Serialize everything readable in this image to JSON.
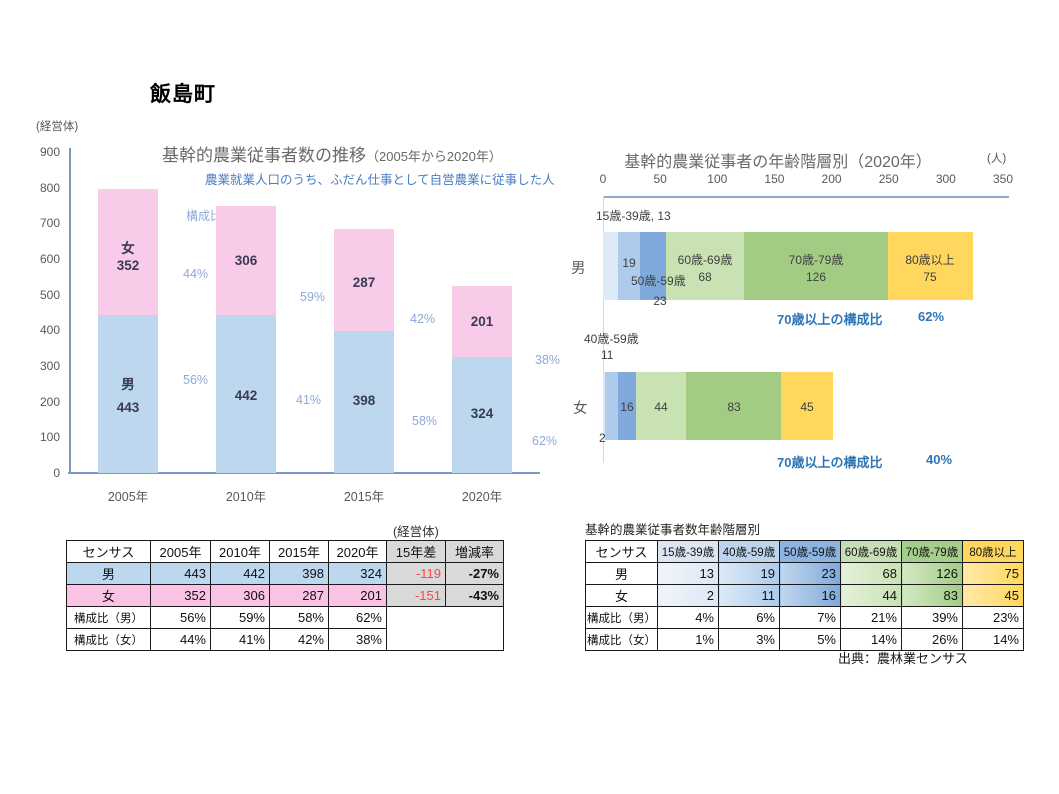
{
  "page": {
    "title": "飯島町",
    "source_note": "出典：農林業センサス"
  },
  "chart_data": [
    {
      "type": "bar",
      "stacked": true,
      "title": "基幹的農業従事者数の推移",
      "title_suffix": "（2005年から2020年）",
      "subtitle": "農業就業人口のうち、ふだん仕事として自営農業に従事した人",
      "unit_label": "(経営体)",
      "overlay_label": "構成比",
      "categories": [
        "2005年",
        "2010年",
        "2015年",
        "2020年"
      ],
      "series": [
        {
          "name": "男",
          "color": "#BDD7EE",
          "values": [
            443,
            442,
            398,
            324
          ]
        },
        {
          "name": "女",
          "color": "#F8CBE8",
          "values": [
            352,
            306,
            287,
            201
          ]
        }
      ],
      "share_labels": {
        "male": [
          "56%",
          "59%",
          "58%",
          "62%"
        ],
        "female": [
          "44%",
          "41%",
          "42%",
          "38%"
        ]
      },
      "ylim": [
        0,
        900
      ],
      "ytick_step": 100,
      "grid": false,
      "legend": "none"
    },
    {
      "type": "bar-horizontal",
      "stacked": true,
      "title": "基幹的農業従事者の年齢階層別（2020年）",
      "unit_label": "(人)",
      "categories": [
        "男",
        "女"
      ],
      "age_groups": [
        "15歳-39歳",
        "40歳-59歳",
        "50歳-59歳",
        "60歳-69歳",
        "70歳-79歳",
        "80歳以上"
      ],
      "age_colors": [
        "#DCE9F6",
        "#AECBEB",
        "#7FA9DB",
        "#C8E2B4",
        "#A2CC84",
        "#FFD75E"
      ],
      "series": [
        {
          "name": "男",
          "values": [
            13,
            19,
            23,
            68,
            126,
            75
          ]
        },
        {
          "name": "女",
          "values": [
            2,
            11,
            16,
            44,
            83,
            45
          ]
        }
      ],
      "xlim": [
        0,
        350
      ],
      "xticks": [
        "0",
        "50",
        "100",
        "150",
        "200",
        "250",
        "300",
        "350"
      ],
      "annotations": {
        "male_callout": "15歳-39歳, 13",
        "female_callout_line1": "40歳-59歳",
        "female_callout_line2": "11",
        "over70_label": "70歳以上の構成比",
        "male_over70_share": "62%",
        "female_over70_share": "40%"
      },
      "grid": false,
      "legend": "none"
    }
  ],
  "left_table": {
    "caption": "(経営体)",
    "headers": [
      "センサス",
      "2005年",
      "2010年",
      "2015年",
      "2020年",
      "15年差",
      "増減率"
    ],
    "rows": [
      {
        "label": "男",
        "values": [
          "443",
          "442",
          "398",
          "324"
        ],
        "diff": "-119",
        "rate": "-27%"
      },
      {
        "label": "女",
        "values": [
          "352",
          "306",
          "287",
          "201"
        ],
        "diff": "-151",
        "rate": "-43%"
      },
      {
        "label": "構成比（男）",
        "values": [
          "56%",
          "59%",
          "58%",
          "62%"
        ]
      },
      {
        "label": "構成比（女）",
        "values": [
          "44%",
          "41%",
          "42%",
          "38%"
        ]
      }
    ]
  },
  "right_table": {
    "caption": "基幹的農業従事者数年齢階層別",
    "headers": [
      "センサス",
      "15歳-39歳",
      "40歳-59歳",
      "50歳-59歳",
      "60歳-69歳",
      "70歳-79歳",
      "80歳以上"
    ],
    "header_colors": [
      "#FFFFFF",
      "#DCE6F2",
      "#BDD4EC",
      "#8DB4E0",
      "#C6DEB5",
      "#A6CE8B",
      "#FFD75E"
    ],
    "cell_colors": [
      "#DCE9F6",
      "#AECBEB",
      "#7FA9DB",
      "#C8E2B4",
      "#A2CC84",
      "#FFD75E"
    ],
    "cell_colors_light": [
      "#F0F5FB",
      "#DCE9F7",
      "#C0D6EE",
      "#E4F1DA",
      "#D4E8C4",
      "#FFE9A8"
    ],
    "rows": [
      {
        "label": "男",
        "values": [
          "13",
          "19",
          "23",
          "68",
          "126",
          "75"
        ]
      },
      {
        "label": "女",
        "values": [
          "2",
          "11",
          "16",
          "44",
          "83",
          "45"
        ]
      },
      {
        "label": "構成比（男）",
        "values": [
          "4%",
          "6%",
          "7%",
          "21%",
          "39%",
          "23%"
        ]
      },
      {
        "label": "構成比（女）",
        "values": [
          "1%",
          "3%",
          "5%",
          "14%",
          "26%",
          "14%"
        ]
      }
    ]
  }
}
